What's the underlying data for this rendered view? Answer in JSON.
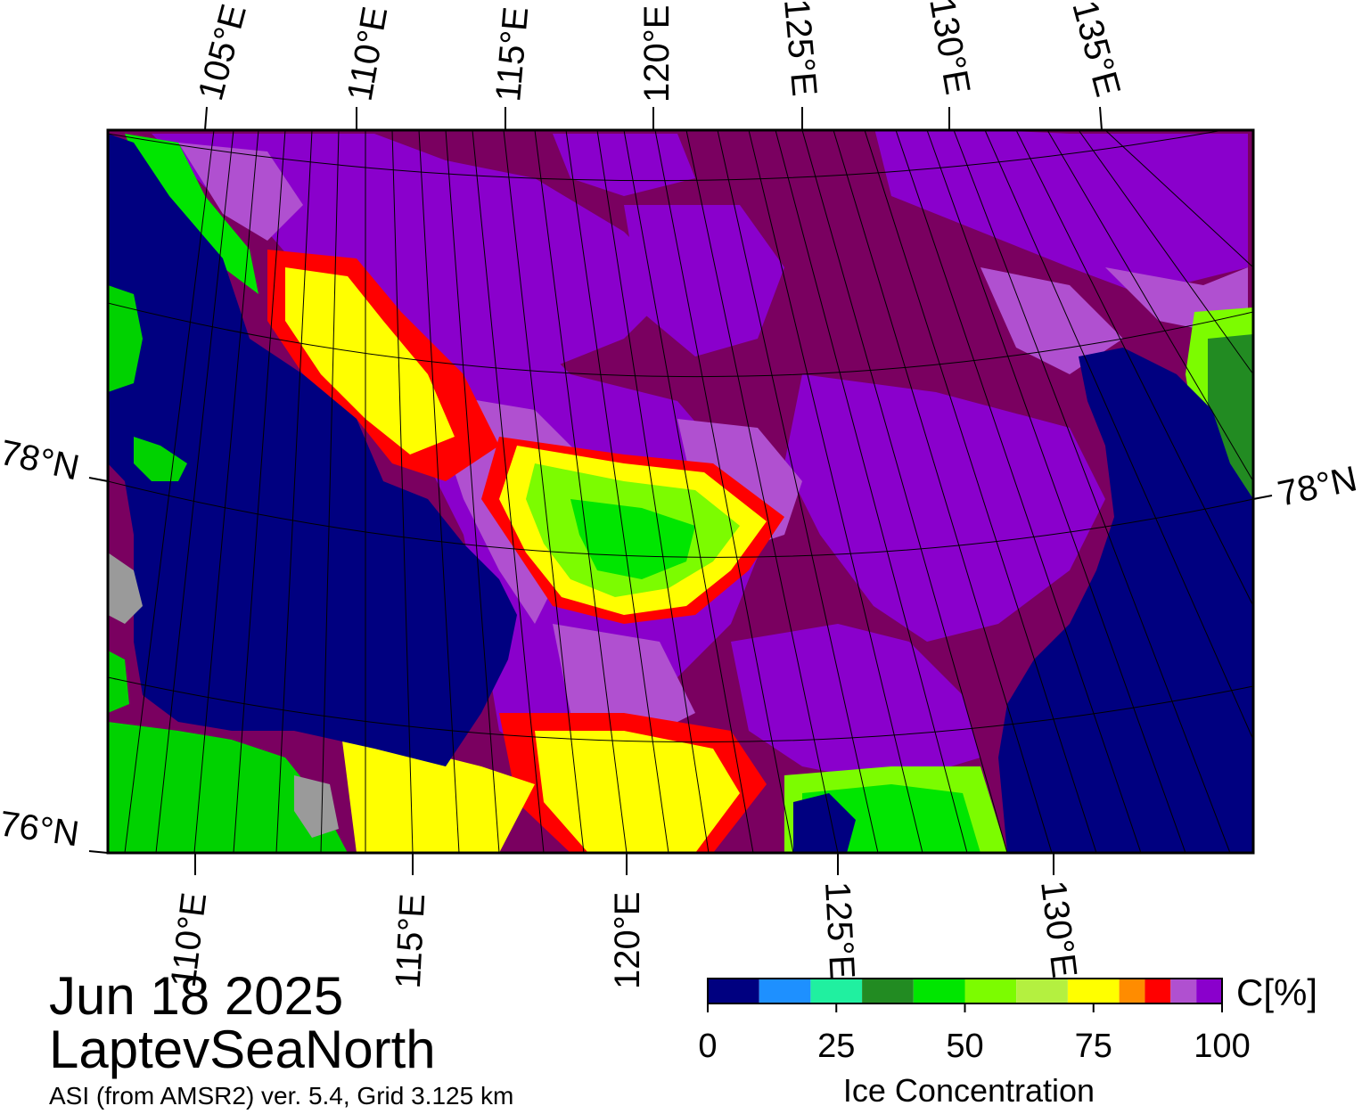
{
  "map": {
    "date": "Jun 18 2025",
    "region": "LaptevSeaNorth",
    "product": "ASI (from AMSR2) ver. 5.4,  Grid 3.125 km",
    "colors": {
      "open_water": "#000080",
      "land": "#00d200",
      "land_gray": "#9a9a9a",
      "high_ice": "#7a0060",
      "mid_ice": "#8a00cc",
      "light_ice": "#b050d0"
    },
    "top_longitude_labels": [
      "105°E",
      "110°E",
      "115°E",
      "120°E",
      "125°E",
      "130°E",
      "135°E"
    ],
    "bottom_longitude_labels": [
      "110°E",
      "115°E",
      "120°E",
      "125°E",
      "130°E"
    ],
    "left_latitude_labels": [
      "78°N",
      "76°N"
    ],
    "right_latitude_labels": [
      "78°N"
    ]
  },
  "colorbar": {
    "title": "Ice Concentration",
    "unit_label": "C[%]",
    "tick_labels": [
      "0",
      "25",
      "50",
      "75",
      "100"
    ],
    "bins": [
      {
        "from": 0,
        "to": 10,
        "color": "#000080"
      },
      {
        "from": 10,
        "to": 20,
        "color": "#1e90ff"
      },
      {
        "from": 20,
        "to": 30,
        "color": "#20f0a0"
      },
      {
        "from": 30,
        "to": 40,
        "color": "#228b22"
      },
      {
        "from": 40,
        "to": 50,
        "color": "#00e600"
      },
      {
        "from": 50,
        "to": 60,
        "color": "#7cfc00"
      },
      {
        "from": 60,
        "to": 70,
        "color": "#b4f040"
      },
      {
        "from": 70,
        "to": 80,
        "color": "#ffff00"
      },
      {
        "from": 80,
        "to": 85,
        "color": "#ff8c00"
      },
      {
        "from": 85,
        "to": 90,
        "color": "#ff0000"
      },
      {
        "from": 90,
        "to": 95,
        "color": "#b050d0"
      },
      {
        "from": 95,
        "to": 100,
        "color": "#8a00cc"
      }
    ]
  }
}
